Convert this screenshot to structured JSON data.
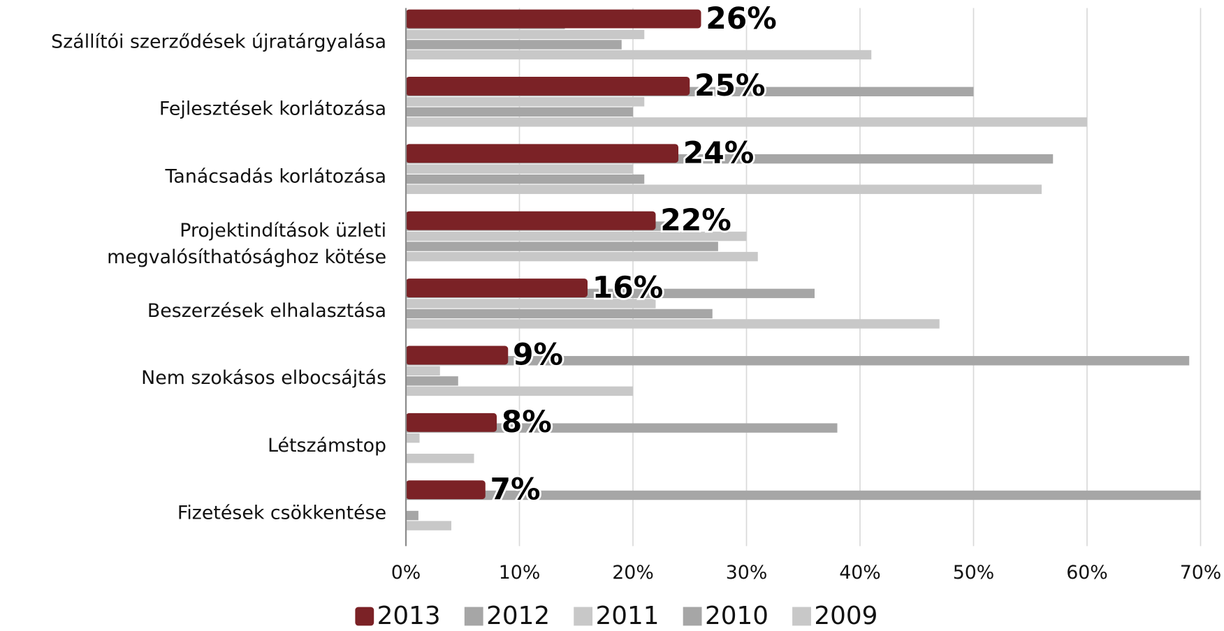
{
  "chart_data": {
    "type": "bar",
    "orientation": "horizontal",
    "categories": [
      "Szállítói szerződések újratárgyalása",
      "Fejlesztések korlátozása",
      "Tanácsadás korlátozása",
      "Projektindítások üzleti\nmegvalósíthatósághoz kötése",
      "Beszerzések elhalasztása",
      "Nem szokásos elbocsájtás",
      "Létszámstop",
      "Fizetések csökkentése"
    ],
    "series": [
      {
        "name": "2013",
        "color": "#7b2226",
        "values": [
          26,
          25,
          24,
          22,
          16,
          9,
          8,
          7
        ],
        "value_labels": [
          "26%",
          "25%",
          "24%",
          "22%",
          "16%",
          "9%",
          "8%",
          "7%"
        ]
      },
      {
        "name": "2012",
        "color": "#a6a6a6",
        "values": [
          14,
          50,
          57,
          23,
          36,
          69,
          38,
          70
        ]
      },
      {
        "name": "2011",
        "color": "#c8c8c8",
        "values": [
          21,
          21,
          20,
          30,
          22,
          3,
          1.2,
          null
        ]
      },
      {
        "name": "2010",
        "color": "#a6a6a6",
        "values": [
          19,
          20,
          21,
          27.5,
          27,
          4.6,
          null,
          1.1
        ]
      },
      {
        "name": "2009",
        "color": "#c8c8c8",
        "values": [
          41,
          60,
          56,
          31,
          47,
          20,
          6,
          4
        ]
      }
    ],
    "xlim": [
      0,
      70
    ],
    "xticks": [
      {
        "value": 0,
        "label": "0%"
      },
      {
        "value": 10,
        "label": "10%"
      },
      {
        "value": 20,
        "label": "20%"
      },
      {
        "value": 30,
        "label": "30%"
      },
      {
        "value": 40,
        "label": "40%"
      },
      {
        "value": 50,
        "label": "50%"
      },
      {
        "value": 60,
        "label": "60%"
      },
      {
        "value": 70,
        "label": "70%"
      }
    ],
    "grid": true,
    "legend": "bottom"
  }
}
